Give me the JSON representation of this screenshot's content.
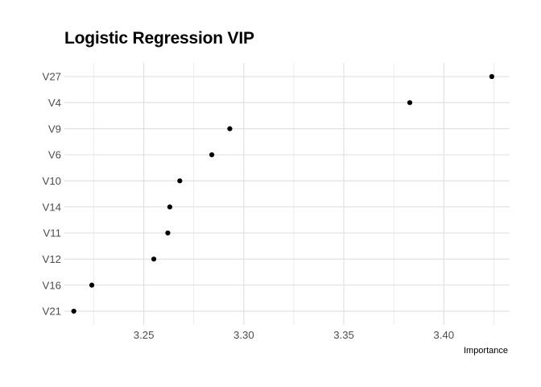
{
  "chart_data": {
    "type": "scatter",
    "title": "Logistic Regression VIP",
    "xlabel": "Importance",
    "ylabel": "",
    "categories": [
      "V21",
      "V16",
      "V12",
      "V11",
      "V14",
      "V10",
      "V6",
      "V9",
      "V4",
      "V27"
    ],
    "values": [
      3.215,
      3.224,
      3.255,
      3.262,
      3.263,
      3.268,
      3.284,
      3.293,
      3.383,
      3.424
    ],
    "xlim": [
      3.2103,
      3.4329
    ],
    "xticks": [
      3.25,
      3.3,
      3.35,
      3.4
    ],
    "xtick_labels": [
      "3.25",
      "3.30",
      "3.35",
      "3.40"
    ],
    "grid": true,
    "theme": "minimal",
    "point_color": "#000000",
    "grid_color": "#dedede"
  }
}
